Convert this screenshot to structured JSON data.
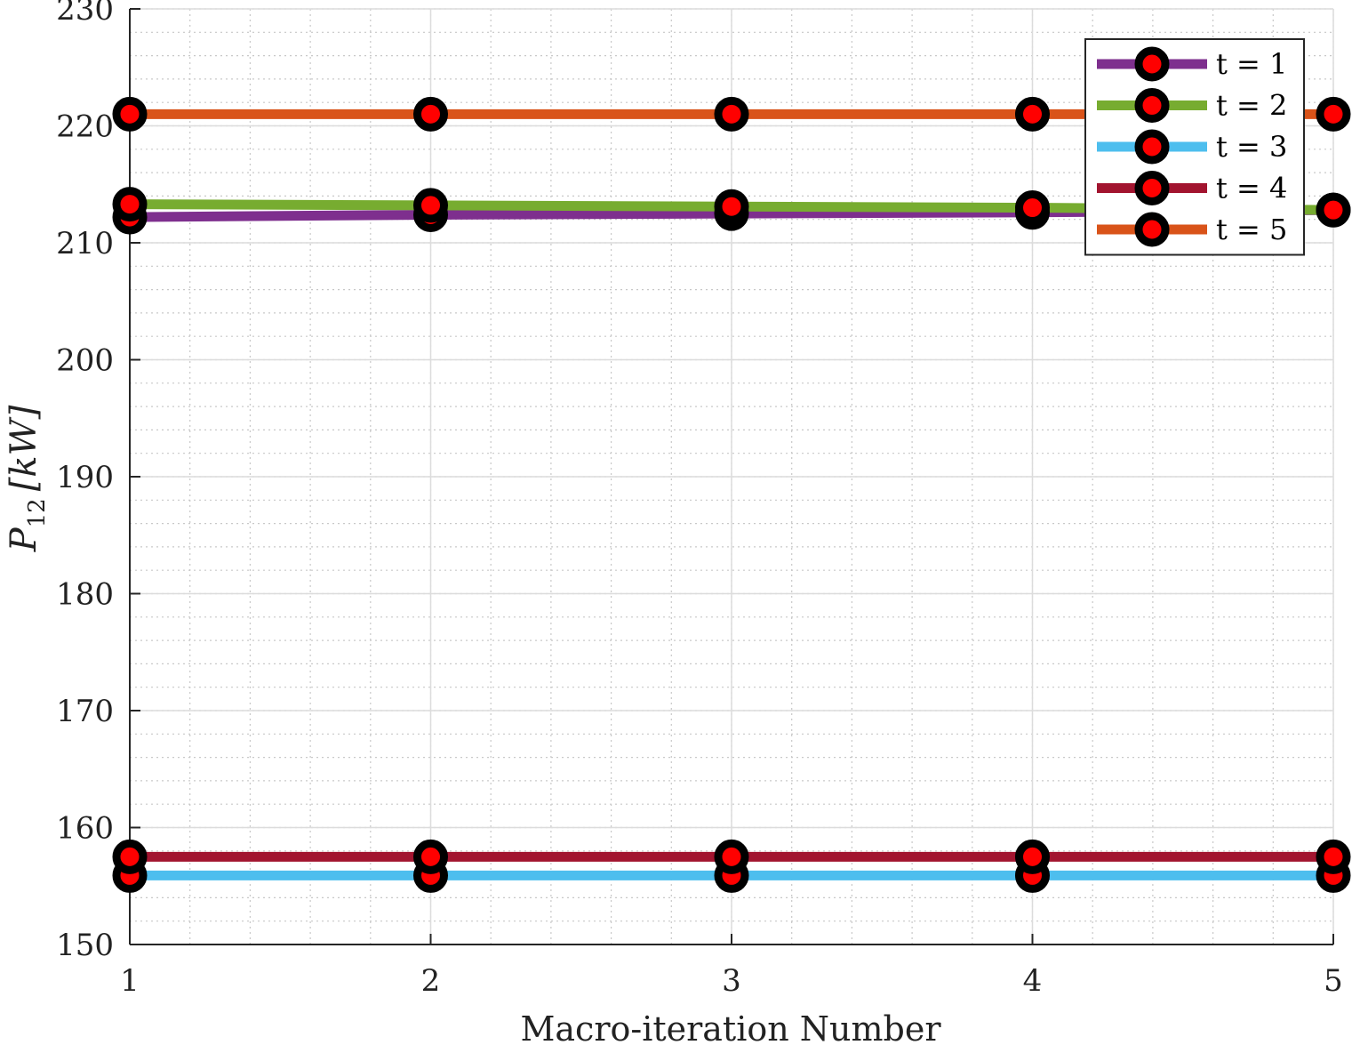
{
  "chart_data": {
    "type": "line",
    "title": "",
    "xlabel": "Macro-iteration Number",
    "ylabel": {
      "symbol": "P",
      "subscript": "12",
      "unit": "[kW]"
    },
    "x": [
      1,
      2,
      3,
      4,
      5
    ],
    "xlim": [
      1,
      5
    ],
    "ylim": [
      150,
      230
    ],
    "xticks": [
      "1",
      "2",
      "3",
      "4",
      "5"
    ],
    "yticks": [
      "150",
      "160",
      "170",
      "180",
      "190",
      "200",
      "210",
      "220",
      "230"
    ],
    "grid": true,
    "minor_grid": true,
    "legend_position": "top-right",
    "marker": {
      "outer_color": "#000000",
      "inner_color": "#ff0000"
    },
    "series": [
      {
        "name": "t = 1",
        "color": "#7e2f8e",
        "values": [
          212.2,
          212.4,
          212.5,
          212.6,
          212.8
        ]
      },
      {
        "name": "t = 2",
        "color": "#77ac30",
        "values": [
          213.3,
          213.2,
          213.1,
          213.0,
          212.8
        ]
      },
      {
        "name": "t = 3",
        "color": "#4dbeee",
        "values": [
          155.9,
          155.9,
          155.9,
          155.9,
          155.9
        ]
      },
      {
        "name": "t = 4",
        "color": "#a2142f",
        "values": [
          157.5,
          157.5,
          157.5,
          157.5,
          157.5
        ]
      },
      {
        "name": "t = 5",
        "color": "#d95319",
        "values": [
          221.0,
          221.0,
          221.0,
          221.0,
          221.0
        ]
      }
    ]
  }
}
